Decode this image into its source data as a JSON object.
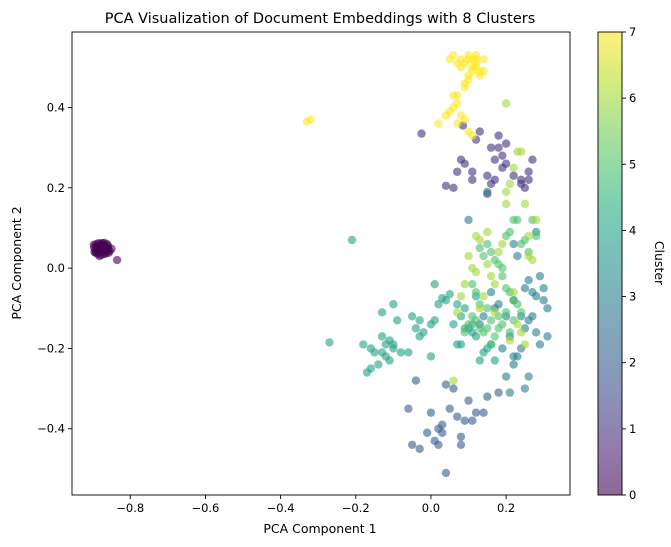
{
  "chart_data": {
    "type": "scatter",
    "title": "PCA Visualization of Document Embeddings with 8 Clusters",
    "xlabel": "PCA Component 1",
    "ylabel": "PCA Component 2",
    "xlim": [
      -0.955,
      0.37
    ],
    "ylim": [
      -0.565,
      0.588
    ],
    "xticks": [
      -0.8,
      -0.6,
      -0.4,
      -0.2,
      0.0,
      0.2
    ],
    "yticks": [
      -0.4,
      -0.2,
      0.0,
      0.2,
      0.4
    ],
    "colorbar": {
      "label": "Cluster",
      "colormap": "viridis",
      "range": [
        0,
        7
      ],
      "ticks": [
        0,
        1,
        2,
        3,
        4,
        5,
        6,
        7
      ]
    },
    "marker_alpha": 0.6,
    "grid": false,
    "series": [
      {
        "cluster": 0,
        "points": [
          [
            -0.89,
            0.05
          ],
          [
            -0.885,
            0.045
          ],
          [
            -0.88,
            0.055
          ],
          [
            -0.875,
            0.04
          ],
          [
            -0.87,
            0.05
          ],
          [
            -0.865,
            0.045
          ],
          [
            -0.878,
            0.06
          ],
          [
            -0.892,
            0.038
          ],
          [
            -0.86,
            0.05
          ],
          [
            -0.855,
            0.042
          ],
          [
            -0.882,
            0.03
          ],
          [
            -0.868,
            0.035
          ],
          [
            -0.874,
            0.058
          ],
          [
            -0.884,
            0.062
          ],
          [
            -0.896,
            0.052
          ],
          [
            -0.862,
            0.06
          ],
          [
            -0.877,
            0.048
          ],
          [
            -0.887,
            0.055
          ],
          [
            -0.871,
            0.043
          ],
          [
            -0.866,
            0.052
          ],
          [
            -0.858,
            0.038
          ],
          [
            -0.881,
            0.04
          ],
          [
            -0.893,
            0.045
          ],
          [
            -0.869,
            0.063
          ],
          [
            -0.876,
            0.033
          ],
          [
            -0.886,
            0.035
          ],
          [
            -0.897,
            0.058
          ],
          [
            -0.861,
            0.047
          ],
          [
            -0.879,
            0.052
          ],
          [
            -0.89,
            0.06
          ],
          [
            -0.873,
            0.047
          ],
          [
            -0.883,
            0.05
          ],
          [
            -0.865,
            0.038
          ],
          [
            -0.88,
            0.045
          ],
          [
            -0.87,
            0.057
          ],
          [
            -0.888,
            0.042
          ],
          [
            -0.859,
            0.055
          ],
          [
            -0.875,
            0.062
          ],
          [
            -0.85,
            0.048
          ],
          [
            -0.895,
            0.04
          ],
          [
            -0.835,
            0.02
          ]
        ]
      },
      {
        "cluster": 1,
        "points": [
          [
            -0.025,
            0.335
          ],
          [
            0.085,
            0.355
          ],
          [
            0.12,
            0.32
          ],
          [
            0.13,
            0.34
          ],
          [
            0.16,
            0.3
          ],
          [
            0.18,
            0.3
          ],
          [
            0.2,
            0.31
          ],
          [
            0.18,
            0.33
          ],
          [
            0.19,
            0.25
          ],
          [
            0.17,
            0.27
          ],
          [
            0.08,
            0.27
          ],
          [
            0.09,
            0.26
          ],
          [
            0.07,
            0.24
          ],
          [
            0.04,
            0.205
          ],
          [
            0.06,
            0.2
          ],
          [
            0.11,
            0.24
          ],
          [
            0.11,
            0.22
          ],
          [
            0.15,
            0.23
          ],
          [
            0.16,
            0.21
          ],
          [
            0.19,
            0.28
          ],
          [
            0.2,
            0.26
          ],
          [
            0.22,
            0.23
          ],
          [
            0.24,
            0.22
          ],
          [
            0.25,
            0.2
          ],
          [
            0.24,
            0.21
          ],
          [
            0.26,
            0.24
          ],
          [
            0.27,
            0.27
          ],
          [
            0.26,
            0.22
          ],
          [
            0.15,
            0.185
          ],
          [
            0.17,
            0.22
          ]
        ]
      },
      {
        "cluster": 2,
        "points": [
          [
            -0.06,
            -0.35
          ],
          [
            -0.05,
            -0.44
          ],
          [
            -0.03,
            -0.45
          ],
          [
            -0.04,
            -0.28
          ],
          [
            -0.01,
            -0.41
          ],
          [
            0.01,
            -0.43
          ],
          [
            0.02,
            -0.4
          ],
          [
            0.03,
            -0.39
          ],
          [
            0.05,
            -0.35
          ],
          [
            0.07,
            -0.37
          ],
          [
            0.08,
            -0.44
          ],
          [
            0.09,
            -0.38
          ],
          [
            0.1,
            -0.33
          ],
          [
            0.12,
            -0.36
          ],
          [
            0.15,
            -0.32
          ],
          [
            0.18,
            -0.31
          ],
          [
            0.04,
            -0.29
          ],
          [
            0.06,
            -0.3
          ],
          [
            0.03,
            -0.41
          ],
          [
            0.04,
            -0.51
          ],
          [
            0.0,
            -0.36
          ],
          [
            0.02,
            -0.44
          ],
          [
            0.08,
            -0.42
          ],
          [
            0.11,
            -0.38
          ],
          [
            0.14,
            -0.36
          ]
        ]
      },
      {
        "cluster": 3,
        "points": [
          [
            0.1,
            0.12
          ],
          [
            0.15,
            0.19
          ],
          [
            0.22,
            0.06
          ],
          [
            0.23,
            0.03
          ],
          [
            0.25,
            -0.05
          ],
          [
            0.26,
            -0.03
          ],
          [
            0.28,
            -0.07
          ],
          [
            0.29,
            -0.02
          ],
          [
            0.3,
            -0.05
          ],
          [
            0.3,
            -0.08
          ],
          [
            0.31,
            -0.1
          ],
          [
            0.31,
            -0.17
          ],
          [
            0.27,
            -0.12
          ],
          [
            0.26,
            -0.13
          ],
          [
            0.25,
            -0.15
          ],
          [
            0.24,
            -0.12
          ],
          [
            0.24,
            -0.2
          ],
          [
            0.23,
            -0.22
          ],
          [
            0.22,
            -0.24
          ],
          [
            0.21,
            -0.31
          ],
          [
            0.25,
            -0.3
          ],
          [
            0.26,
            -0.27
          ],
          [
            0.28,
            -0.16
          ],
          [
            0.29,
            -0.19
          ],
          [
            0.2,
            -0.12
          ],
          [
            0.22,
            -0.08
          ],
          [
            0.27,
            -0.06
          ],
          [
            0.28,
            0.09
          ],
          [
            0.16,
            -0.06
          ],
          [
            0.18,
            -0.09
          ],
          [
            0.17,
            -0.1
          ],
          [
            0.14,
            -0.12
          ],
          [
            0.13,
            -0.14
          ],
          [
            0.21,
            -0.17
          ],
          [
            0.19,
            -0.2
          ],
          [
            0.2,
            -0.27
          ],
          [
            0.22,
            -0.22
          ]
        ]
      },
      {
        "cluster": 4,
        "points": [
          [
            -0.27,
            -0.185
          ],
          [
            -0.21,
            0.07
          ],
          [
            -0.18,
            -0.19
          ],
          [
            -0.16,
            -0.2
          ],
          [
            -0.15,
            -0.21
          ],
          [
            -0.17,
            -0.26
          ],
          [
            -0.16,
            -0.25
          ],
          [
            -0.13,
            -0.17
          ],
          [
            -0.12,
            -0.19
          ],
          [
            -0.11,
            -0.18
          ],
          [
            -0.1,
            -0.2
          ],
          [
            -0.13,
            -0.21
          ],
          [
            -0.14,
            -0.24
          ],
          [
            -0.12,
            -0.22
          ],
          [
            -0.11,
            -0.23
          ],
          [
            -0.1,
            -0.09
          ],
          [
            -0.13,
            -0.11
          ],
          [
            -0.09,
            -0.13
          ],
          [
            -0.08,
            -0.21
          ],
          [
            -0.06,
            -0.21
          ],
          [
            -0.04,
            -0.15
          ],
          [
            -0.03,
            -0.13
          ],
          [
            -0.02,
            -0.16
          ],
          [
            0.0,
            -0.14
          ],
          [
            0.01,
            -0.13
          ],
          [
            0.02,
            -0.09
          ],
          [
            0.03,
            -0.075
          ],
          [
            0.04,
            -0.08
          ],
          [
            0.05,
            -0.065
          ],
          [
            0.06,
            -0.14
          ],
          [
            0.07,
            -0.19
          ],
          [
            0.08,
            -0.19
          ],
          [
            0.09,
            -0.15
          ],
          [
            0.1,
            -0.15
          ],
          [
            0.11,
            -0.16
          ],
          [
            0.12,
            -0.17
          ],
          [
            0.13,
            -0.23
          ],
          [
            0.14,
            -0.21
          ],
          [
            0.15,
            -0.2
          ],
          [
            0.16,
            -0.19
          ],
          [
            0.17,
            -0.23
          ],
          [
            0.11,
            -0.14
          ],
          [
            0.12,
            -0.07
          ],
          [
            0.09,
            -0.1
          ],
          [
            0.01,
            -0.04
          ],
          [
            -0.1,
            -0.19
          ],
          [
            -0.05,
            -0.12
          ],
          [
            -0.03,
            -0.17
          ],
          [
            0.0,
            -0.22
          ],
          [
            0.07,
            -0.09
          ],
          [
            0.08,
            -0.12
          ]
        ]
      },
      {
        "cluster": 5,
        "points": [
          [
            0.13,
            0.05
          ],
          [
            0.14,
            0.03
          ],
          [
            0.15,
            0.06
          ],
          [
            0.16,
            0.04
          ],
          [
            0.17,
            0.02
          ],
          [
            0.18,
            0.01
          ],
          [
            0.19,
            -0.02
          ],
          [
            0.2,
            -0.05
          ],
          [
            0.21,
            -0.06
          ],
          [
            0.22,
            -0.08
          ],
          [
            0.23,
            -0.09
          ],
          [
            0.2,
            -0.11
          ],
          [
            0.18,
            -0.12
          ],
          [
            0.16,
            -0.13
          ],
          [
            0.15,
            -0.15
          ],
          [
            0.14,
            -0.16
          ],
          [
            0.13,
            -0.15
          ],
          [
            0.12,
            -0.13
          ],
          [
            0.11,
            -0.12
          ],
          [
            0.1,
            -0.14
          ],
          [
            0.09,
            -0.16
          ],
          [
            0.19,
            -0.14
          ],
          [
            0.21,
            -0.16
          ],
          [
            0.22,
            -0.13
          ],
          [
            0.24,
            -0.11
          ],
          [
            0.18,
            -0.15
          ],
          [
            0.17,
            -0.17
          ],
          [
            0.16,
            -0.19
          ],
          [
            0.15,
            -0.1
          ],
          [
            0.13,
            -0.09
          ],
          [
            0.12,
            -0.06
          ],
          [
            0.11,
            -0.04
          ],
          [
            0.19,
            0.0
          ],
          [
            0.2,
            0.08
          ],
          [
            0.21,
            0.09
          ],
          [
            0.22,
            0.12
          ],
          [
            0.23,
            0.12
          ],
          [
            0.24,
            0.06
          ],
          [
            0.25,
            0.07
          ],
          [
            0.26,
            0.04
          ],
          [
            0.27,
            0.12
          ],
          [
            0.28,
            0.08
          ]
        ]
      },
      {
        "cluster": 6,
        "points": [
          [
            0.12,
            0.08
          ],
          [
            0.13,
            0.07
          ],
          [
            0.15,
            0.01
          ],
          [
            0.16,
            -0.02
          ],
          [
            0.17,
            -0.04
          ],
          [
            0.18,
            0.04
          ],
          [
            0.19,
            0.06
          ],
          [
            0.2,
            0.16
          ],
          [
            0.21,
            0.21
          ],
          [
            0.22,
            0.25
          ],
          [
            0.23,
            0.29
          ],
          [
            0.24,
            0.29
          ],
          [
            0.25,
            0.16
          ],
          [
            0.26,
            0.08
          ],
          [
            0.27,
            0.02
          ],
          [
            0.28,
            0.12
          ],
          [
            0.2,
            0.41
          ],
          [
            0.2,
            0.19
          ],
          [
            0.1,
            0.03
          ],
          [
            0.11,
            0.0
          ],
          [
            0.12,
            -0.01
          ],
          [
            0.09,
            -0.04
          ],
          [
            0.08,
            -0.07
          ],
          [
            0.07,
            -0.11
          ],
          [
            0.06,
            -0.28
          ],
          [
            0.13,
            -0.1
          ],
          [
            0.14,
            -0.07
          ],
          [
            0.22,
            -0.06
          ],
          [
            0.23,
            -0.14
          ],
          [
            0.21,
            -0.18
          ],
          [
            0.24,
            -0.16
          ],
          [
            0.25,
            -0.19
          ],
          [
            0.17,
            -0.11
          ],
          [
            0.15,
            0.09
          ],
          [
            0.26,
            0.03
          ]
        ]
      },
      {
        "cluster": 7,
        "points": [
          [
            -0.33,
            0.365
          ],
          [
            -0.32,
            0.37
          ],
          [
            0.05,
            0.52
          ],
          [
            0.06,
            0.53
          ],
          [
            0.06,
            0.43
          ],
          [
            0.07,
            0.43
          ],
          [
            0.07,
            0.51
          ],
          [
            0.07,
            0.41
          ],
          [
            0.08,
            0.5
          ],
          [
            0.08,
            0.52
          ],
          [
            0.09,
            0.51
          ],
          [
            0.09,
            0.46
          ],
          [
            0.1,
            0.47
          ],
          [
            0.1,
            0.48
          ],
          [
            0.1,
            0.52
          ],
          [
            0.11,
            0.5
          ],
          [
            0.11,
            0.52
          ],
          [
            0.12,
            0.52
          ],
          [
            0.12,
            0.5
          ],
          [
            0.12,
            0.53
          ],
          [
            0.13,
            0.49
          ],
          [
            0.14,
            0.49
          ],
          [
            0.09,
            0.37
          ],
          [
            0.08,
            0.38
          ],
          [
            0.1,
            0.34
          ],
          [
            0.11,
            0.33
          ],
          [
            0.05,
            0.39
          ],
          [
            0.04,
            0.38
          ],
          [
            0.02,
            0.36
          ],
          [
            0.06,
            0.4
          ],
          [
            0.07,
            0.36
          ],
          [
            0.1,
            0.53
          ],
          [
            0.14,
            0.52
          ],
          [
            0.12,
            0.51
          ],
          [
            0.11,
            0.49
          ],
          [
            0.13,
            0.48
          ],
          [
            0.09,
            0.45
          ]
        ]
      }
    ]
  }
}
